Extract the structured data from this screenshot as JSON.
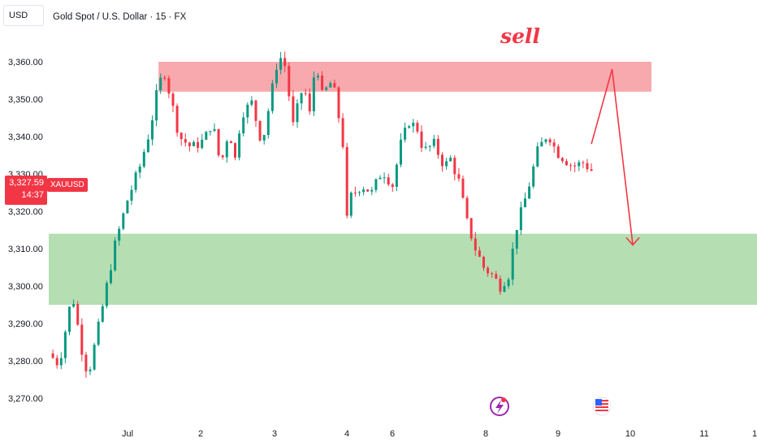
{
  "header": {
    "currency": "USD",
    "title": "Gold Spot / U.S. Dollar · 15 · FX"
  },
  "price_tag": {
    "price": "3,327.59",
    "countdown": "14:37",
    "symbol": "XAUUSD"
  },
  "annotation": {
    "text": "sell",
    "color": "#f23645"
  },
  "colors": {
    "up": "#089981",
    "down": "#f23645",
    "sell_zone": "#f7a4a9",
    "buy_zone": "#b1dcae",
    "arrow": "#f23645"
  },
  "icons": [
    "lightning-event-icon",
    "us-flag-event-icon"
  ],
  "chart_data": {
    "type": "candlestick",
    "title": "Gold Spot / U.S. Dollar · 15 · FX",
    "ylim": [
      3267,
      3370
    ],
    "y_ticks": [
      3270,
      3280,
      3290,
      3300,
      3310,
      3320,
      3330,
      3340,
      3350,
      3360
    ],
    "y_tick_labels": [
      "3,270.00",
      "3,280.00",
      "3,290.00",
      "3,300.00",
      "3,310.00",
      "3,320.00",
      "3,330.00",
      "3,340.00",
      "3,350.00",
      "3,360.00"
    ],
    "x_tick_labels": [
      "Jul",
      "2",
      "3",
      "4",
      "6",
      "8",
      "9",
      "10",
      "11",
      "1"
    ],
    "last_price": 3327.59,
    "close_path": [
      [
        0,
        3282
      ],
      [
        0.5,
        3279
      ],
      [
        1.0,
        3294
      ],
      [
        1.2,
        3296
      ],
      [
        1.6,
        3283
      ],
      [
        1.9,
        3276
      ],
      [
        2.4,
        3289
      ],
      [
        2.8,
        3300
      ],
      [
        3.2,
        3311
      ],
      [
        3.5,
        3317
      ],
      [
        3.8,
        3323
      ],
      [
        4.4,
        3332
      ],
      [
        4.9,
        3342
      ],
      [
        5.3,
        3354
      ],
      [
        5.6,
        3357
      ],
      [
        5.9,
        3350
      ],
      [
        6.3,
        3340
      ],
      [
        6.9,
        3337
      ],
      [
        7.5,
        3339
      ],
      [
        7.9,
        3344
      ],
      [
        8.3,
        3332
      ],
      [
        8.7,
        3342
      ],
      [
        9.0,
        3334
      ],
      [
        9.3,
        3346
      ],
      [
        9.8,
        3349
      ],
      [
        10.3,
        3338
      ],
      [
        10.7,
        3350
      ],
      [
        11.1,
        3362
      ],
      [
        11.4,
        3359
      ],
      [
        11.8,
        3343
      ],
      [
        12.3,
        3354
      ],
      [
        12.6,
        3346
      ],
      [
        12.9,
        3361
      ],
      [
        13.2,
        3351
      ],
      [
        13.7,
        3355
      ],
      [
        14.1,
        3342
      ],
      [
        14.25,
        3336
      ],
      [
        14.35,
        3316
      ],
      [
        14.6,
        3324
      ],
      [
        15.1,
        3327
      ],
      [
        15.6,
        3325
      ],
      [
        16.1,
        3331
      ],
      [
        16.6,
        3327
      ],
      [
        17.0,
        3338
      ],
      [
        17.4,
        3344
      ],
      [
        17.8,
        3342
      ],
      [
        18.1,
        3336
      ],
      [
        18.6,
        3338
      ],
      [
        19.1,
        3332
      ],
      [
        19.4,
        3334
      ],
      [
        19.8,
        3328
      ],
      [
        20.2,
        3317
      ],
      [
        20.6,
        3310
      ],
      [
        21.0,
        3305
      ],
      [
        21.4,
        3303
      ],
      [
        21.8,
        3300
      ],
      [
        22.2,
        3303
      ],
      [
        22.6,
        3316
      ],
      [
        23.1,
        3325
      ],
      [
        23.6,
        3336
      ],
      [
        24.1,
        3341
      ],
      [
        24.5,
        3336
      ],
      [
        24.9,
        3334
      ],
      [
        25.3,
        3332
      ],
      [
        25.8,
        3333
      ],
      [
        26.2,
        3331
      ]
    ],
    "zones": [
      {
        "name": "",
        "y_from": 3352,
        "y_to": 3360,
        "x_from": 5.3,
        "x_to": 29.1
      },
      {
        "name": "",
        "y_from": 3295,
        "y_to": 3314,
        "x_from": 0,
        "x_to": 36.5
      }
    ],
    "arrows": [
      [
        [
          26.2,
          3338
        ],
        [
          27.2,
          3358
        ]
      ],
      [
        [
          27.2,
          3358
        ],
        [
          28.2,
          3311
        ]
      ]
    ],
    "grid": false
  }
}
